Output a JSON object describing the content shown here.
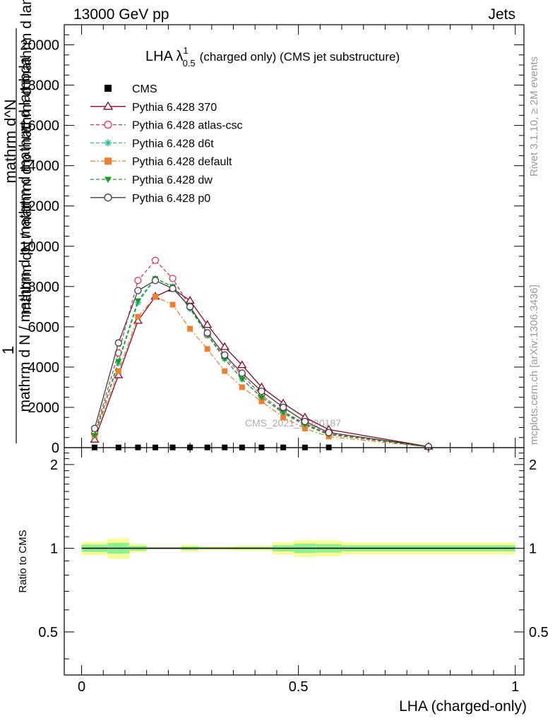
{
  "header": {
    "left": "13000 GeV pp",
    "right": "Jets"
  },
  "side_labels": {
    "rivet": "Rivet 3.1.10, ≥ 2M events",
    "mcplots": "mcplots.cern.ch [arXiv:1306.3436]"
  },
  "watermark": "CMS_2021_I1920187",
  "chart_data": [
    {
      "type": "line",
      "title_main": "LHA λ",
      "title_sup": "1",
      "title_sub": "0.5",
      "title_rest": "(charged only) (CMS jet substructure)",
      "ylabel_num": "1",
      "ylabel_frac_top": "mathrm d^N",
      "ylabel_frac_bottom": "mathrm d N / mathrm d p_mathrm d  mathrm d lambda",
      "ylabel_overlap": "mathrm dN / mathrm d p mathrm d  mathrm d lambda",
      "xlim": [
        -0.04,
        1.02
      ],
      "ylim": [
        0,
        21000
      ],
      "y_ticks": [
        {
          "value": 0,
          "label": "0"
        },
        {
          "value": 2000,
          "label": "2000"
        },
        {
          "value": 4000,
          "label": "4000"
        },
        {
          "value": 6000,
          "label": "6000"
        },
        {
          "value": 8000,
          "label": "8000"
        },
        {
          "value": 10000,
          "label": "10000"
        },
        {
          "value": 12000,
          "label": "12000"
        },
        {
          "value": 14000,
          "label": "14000"
        },
        {
          "value": 16000,
          "label": "16000"
        },
        {
          "value": 18000,
          "label": "18000"
        },
        {
          "value": 20000,
          "label": "20000"
        }
      ],
      "legend_position": "top-left",
      "series": [
        {
          "name": "CMS",
          "color": "#000000",
          "marker": "square-filled",
          "dash": "none",
          "x": [
            0.03,
            0.085,
            0.13,
            0.17,
            0.21,
            0.25,
            0.29,
            0.33,
            0.37,
            0.415,
            0.465,
            0.515,
            0.57
          ],
          "y": [
            10,
            10,
            10,
            10,
            10,
            10,
            10,
            10,
            10,
            10,
            10,
            10,
            10
          ]
        },
        {
          "name": "Pythia 6.428 370",
          "color": "#8b0020",
          "marker": "triangle-open",
          "dash": "solid",
          "x": [
            0.03,
            0.085,
            0.13,
            0.17,
            0.21,
            0.25,
            0.29,
            0.33,
            0.37,
            0.415,
            0.465,
            0.515,
            0.57,
            0.8
          ],
          "y": [
            400,
            3600,
            6300,
            7500,
            7900,
            7300,
            6100,
            5000,
            4100,
            3000,
            2200,
            1500,
            900,
            50
          ]
        },
        {
          "name": "Pythia 6.428 atlas-csc",
          "color": "#e8305a",
          "marker": "circle-open",
          "dash": "dash",
          "x": [
            0.03,
            0.085,
            0.13,
            0.17,
            0.21,
            0.25,
            0.29,
            0.33,
            0.37,
            0.415,
            0.465,
            0.515,
            0.57,
            0.8
          ],
          "y": [
            700,
            4700,
            8300,
            9300,
            8400,
            7000,
            5600,
            4500,
            3600,
            2600,
            1800,
            1200,
            700,
            40
          ]
        },
        {
          "name": "Pythia 6.428 d6t",
          "color": "#20c090",
          "marker": "star",
          "dash": "dash",
          "x": [
            0.03,
            0.085,
            0.13,
            0.17,
            0.21,
            0.25,
            0.29,
            0.33,
            0.37,
            0.415,
            0.465,
            0.515,
            0.57,
            0.8
          ],
          "y": [
            600,
            4200,
            7200,
            8400,
            8000,
            6900,
            5600,
            4400,
            3400,
            2500,
            1700,
            1100,
            650,
            40
          ]
        },
        {
          "name": "Pythia 6.428 default",
          "color": "#f08030",
          "marker": "square-filled",
          "dash": "dashdot",
          "x": [
            0.03,
            0.085,
            0.13,
            0.17,
            0.21,
            0.25,
            0.29,
            0.33,
            0.37,
            0.415,
            0.465,
            0.515,
            0.57,
            0.8
          ],
          "y": [
            600,
            3800,
            6500,
            7500,
            7100,
            5900,
            4900,
            3800,
            3000,
            2300,
            1500,
            950,
            550,
            30
          ]
        },
        {
          "name": "Pythia 6.428 dw",
          "color": "#10a020",
          "marker": "triangle-down-filled",
          "dash": "dash",
          "x": [
            0.03,
            0.085,
            0.13,
            0.17,
            0.21,
            0.25,
            0.29,
            0.33,
            0.37,
            0.415,
            0.465,
            0.515,
            0.57,
            0.8
          ],
          "y": [
            600,
            4300,
            7300,
            8400,
            8000,
            6900,
            5600,
            4400,
            3400,
            2500,
            1750,
            1150,
            650,
            40
          ]
        },
        {
          "name": "Pythia 6.428 p0",
          "color": "#404040",
          "marker": "circle-open",
          "dash": "solid",
          "x": [
            0.03,
            0.085,
            0.13,
            0.17,
            0.21,
            0.25,
            0.29,
            0.33,
            0.37,
            0.415,
            0.465,
            0.515,
            0.57,
            0.8
          ],
          "y": [
            950,
            5200,
            7800,
            8300,
            7900,
            7000,
            5700,
            4600,
            3700,
            2800,
            2000,
            1300,
            750,
            50
          ]
        }
      ]
    },
    {
      "type": "area",
      "ylabel": "Ratio to CMS",
      "xlabel": "LHA (charged-only)",
      "xlim": [
        -0.04,
        1.02
      ],
      "ylim": [
        0.35,
        2.3
      ],
      "y_ticks": [
        {
          "value": 0.5,
          "label": "0.5"
        },
        {
          "value": 1,
          "label": "1"
        },
        {
          "value": 2,
          "label": "2"
        }
      ],
      "x_ticks": [
        {
          "value": 0,
          "label": "0"
        },
        {
          "value": 0.5,
          "label": "0.5"
        },
        {
          "value": 1,
          "label": "1"
        }
      ],
      "bands": {
        "edges": [
          0,
          0.06,
          0.11,
          0.15,
          0.19,
          0.23,
          0.27,
          0.31,
          0.35,
          0.39,
          0.44,
          0.49,
          0.54,
          0.6,
          1
        ],
        "green_half": [
          0.03,
          0.045,
          0.02,
          0.006,
          0.006,
          0.015,
          0.008,
          0.008,
          0.01,
          0.01,
          0.025,
          0.04,
          0.035,
          0.025
        ],
        "yellow_half": [
          0.055,
          0.085,
          0.035,
          0.01,
          0.01,
          0.03,
          0.015,
          0.015,
          0.02,
          0.02,
          0.05,
          0.07,
          0.065,
          0.05
        ]
      },
      "band_colors": {
        "green": "#8ef08e",
        "yellow": "#fbfb96"
      }
    }
  ]
}
